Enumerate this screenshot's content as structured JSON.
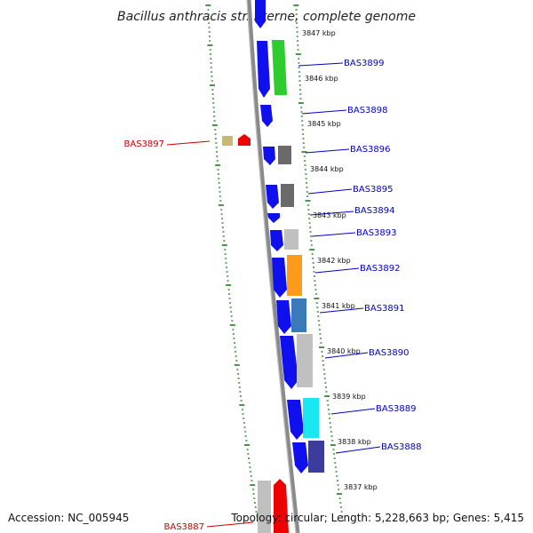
{
  "title": "Bacillus anthracis str. Sterne, complete genome",
  "footer": {
    "accession": "Accession: NC_005945",
    "topology": "Topology: circular; Length: 5,228,663 bp; Genes: 5,415"
  },
  "colors": {
    "forward": "#1010ee",
    "backbone": "#8a8a8a",
    "tick_green": "#1a7a1a",
    "label_blue": "#0000cc",
    "label_red": "#cc0000"
  },
  "scale_labels": [
    "3847 kbp",
    "3846 kbp",
    "3845 kbp",
    "3844 kbp",
    "3843 kbp",
    "3842 kbp",
    "3841 kbp",
    "3840 kbp",
    "3839 kbp",
    "3838 kbp",
    "3837 kbp"
  ],
  "gene_labels": [
    {
      "text": "BAS3899",
      "color": "#0000cc"
    },
    {
      "text": "BAS3898",
      "color": "#0000cc"
    },
    {
      "text": "BAS3897",
      "color": "#cc0000"
    },
    {
      "text": "BAS3896",
      "color": "#0000cc"
    },
    {
      "text": "BAS3895",
      "color": "#0000cc"
    },
    {
      "text": "BAS3894",
      "color": "#0000cc"
    },
    {
      "text": "BAS3893",
      "color": "#0000cc"
    },
    {
      "text": "BAS3892",
      "color": "#0000cc"
    },
    {
      "text": "BAS3891",
      "color": "#0000cc"
    },
    {
      "text": "BAS3890",
      "color": "#0000cc"
    },
    {
      "text": "BAS3889",
      "color": "#0000cc"
    },
    {
      "text": "BAS3888",
      "color": "#0000cc"
    },
    {
      "text": "BAS3887",
      "color": "#cc0000"
    }
  ]
}
